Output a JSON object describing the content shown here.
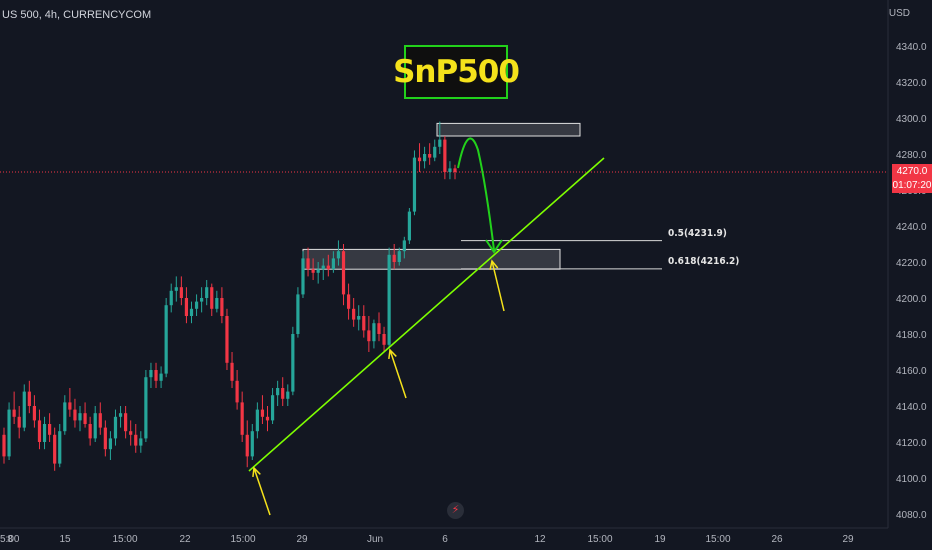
{
  "symbol": "US 500, 4h, CURRENCYCOM",
  "currency": "USD",
  "title_box": "SnP500",
  "current_price": "4270.0",
  "countdown": "01:07:20",
  "colors": {
    "background": "#131722",
    "up_candle": "#26a69a",
    "down_candle": "#f23645",
    "trendline": "#7fff00",
    "arrow_yellow": "#f5e21b",
    "arrow_green": "#22d11b",
    "price_line": "#f23645"
  },
  "fib_levels": [
    {
      "label": "0.5(4231.9)",
      "price": 4231.9
    },
    {
      "label": "0.618(4216.2)",
      "price": 4216.2
    }
  ],
  "chart_data": {
    "type": "candlestick",
    "title": "",
    "y_axis": {
      "min": 4076,
      "max": 4350,
      "ticks": [
        "4080.0",
        "4100.0",
        "4120.0",
        "4140.0",
        "4160.0",
        "4180.0",
        "4200.0",
        "4220.0",
        "4240.0",
        "4260.0",
        "4280.0",
        "4300.0",
        "4320.0",
        "4340.0"
      ]
    },
    "x_axis": {
      "ticks": [
        "5:00",
        "8",
        "15",
        "15:00",
        "22",
        "15:00",
        "29",
        "Jun",
        "6",
        "12",
        "15:00",
        "19",
        "15:00",
        "26",
        "29"
      ]
    },
    "candles": [
      [
        4124,
        4128,
        4108,
        4112
      ],
      [
        4112,
        4142,
        4110,
        4138
      ],
      [
        4138,
        4148,
        4130,
        4134
      ],
      [
        4134,
        4140,
        4122,
        4128
      ],
      [
        4128,
        4152,
        4126,
        4148
      ],
      [
        4148,
        4154,
        4136,
        4140
      ],
      [
        4140,
        4146,
        4128,
        4132
      ],
      [
        4132,
        4138,
        4116,
        4120
      ],
      [
        4120,
        4134,
        4116,
        4130
      ],
      [
        4130,
        4136,
        4120,
        4124
      ],
      [
        4124,
        4128,
        4104,
        4108
      ],
      [
        4108,
        4130,
        4106,
        4126
      ],
      [
        4126,
        4146,
        4124,
        4142
      ],
      [
        4142,
        4150,
        4134,
        4138
      ],
      [
        4138,
        4144,
        4128,
        4132
      ],
      [
        4132,
        4140,
        4126,
        4136
      ],
      [
        4136,
        4142,
        4128,
        4130
      ],
      [
        4130,
        4134,
        4118,
        4122
      ],
      [
        4122,
        4140,
        4120,
        4136
      ],
      [
        4136,
        4142,
        4124,
        4128
      ],
      [
        4128,
        4132,
        4112,
        4116
      ],
      [
        4116,
        4126,
        4110,
        4122
      ],
      [
        4122,
        4138,
        4118,
        4134
      ],
      [
        4134,
        4140,
        4128,
        4136
      ],
      [
        4136,
        4140,
        4122,
        4126
      ],
      [
        4126,
        4132,
        4118,
        4124
      ],
      [
        4124,
        4130,
        4114,
        4118
      ],
      [
        4118,
        4126,
        4114,
        4122
      ],
      [
        4122,
        4160,
        4120,
        4156
      ],
      [
        4156,
        4164,
        4150,
        4160
      ],
      [
        4160,
        4164,
        4150,
        4154
      ],
      [
        4154,
        4162,
        4150,
        4158
      ],
      [
        4158,
        4200,
        4156,
        4196
      ],
      [
        4196,
        4208,
        4192,
        4204
      ],
      [
        4204,
        4212,
        4198,
        4206
      ],
      [
        4206,
        4212,
        4196,
        4200
      ],
      [
        4200,
        4206,
        4186,
        4190
      ],
      [
        4190,
        4198,
        4186,
        4194
      ],
      [
        4194,
        4202,
        4190,
        4198
      ],
      [
        4198,
        4206,
        4192,
        4200
      ],
      [
        4200,
        4210,
        4196,
        4206
      ],
      [
        4206,
        4208,
        4190,
        4194
      ],
      [
        4194,
        4204,
        4192,
        4200
      ],
      [
        4200,
        4206,
        4186,
        4190
      ],
      [
        4190,
        4194,
        4160,
        4164
      ],
      [
        4164,
        4170,
        4150,
        4154
      ],
      [
        4154,
        4160,
        4138,
        4142
      ],
      [
        4142,
        4148,
        4120,
        4124
      ],
      [
        4124,
        4132,
        4106,
        4112
      ],
      [
        4112,
        4130,
        4110,
        4126
      ],
      [
        4126,
        4142,
        4122,
        4138
      ],
      [
        4138,
        4146,
        4130,
        4134
      ],
      [
        4134,
        4140,
        4126,
        4132
      ],
      [
        4132,
        4150,
        4130,
        4146
      ],
      [
        4146,
        4154,
        4140,
        4150
      ],
      [
        4150,
        4156,
        4140,
        4144
      ],
      [
        4144,
        4152,
        4140,
        4148
      ],
      [
        4148,
        4184,
        4146,
        4180
      ],
      [
        4180,
        4206,
        4178,
        4202
      ],
      [
        4202,
        4226,
        4200,
        4222
      ],
      [
        4222,
        4228,
        4212,
        4216
      ],
      [
        4216,
        4222,
        4210,
        4214
      ],
      [
        4214,
        4220,
        4208,
        4216
      ],
      [
        4216,
        4222,
        4210,
        4218
      ],
      [
        4218,
        4224,
        4212,
        4216
      ],
      [
        4216,
        4226,
        4214,
        4222
      ],
      [
        4222,
        4232,
        4218,
        4226
      ],
      [
        4226,
        4230,
        4196,
        4202
      ],
      [
        4202,
        4208,
        4188,
        4194
      ],
      [
        4194,
        4200,
        4184,
        4188
      ],
      [
        4188,
        4196,
        4182,
        4190
      ],
      [
        4190,
        4196,
        4178,
        4182
      ],
      [
        4182,
        4190,
        4170,
        4176
      ],
      [
        4176,
        4188,
        4172,
        4186
      ],
      [
        4186,
        4192,
        4176,
        4180
      ],
      [
        4180,
        4184,
        4170,
        4174
      ],
      [
        4174,
        4228,
        4172,
        4224
      ],
      [
        4224,
        4230,
        4216,
        4220
      ],
      [
        4220,
        4228,
        4218,
        4226
      ],
      [
        4226,
        4234,
        4222,
        4232
      ],
      [
        4232,
        4250,
        4230,
        4248
      ],
      [
        4248,
        4282,
        4246,
        4278
      ],
      [
        4278,
        4286,
        4270,
        4276
      ],
      [
        4276,
        4284,
        4272,
        4280
      ],
      [
        4280,
        4286,
        4274,
        4278
      ],
      [
        4278,
        4288,
        4276,
        4284
      ],
      [
        4284,
        4298,
        4280,
        4288
      ],
      [
        4288,
        4290,
        4266,
        4270
      ],
      [
        4270,
        4276,
        4266,
        4272
      ],
      [
        4272,
        4274,
        4266,
        4270
      ]
    ],
    "trendline": {
      "from": [
        4104,
        "candle 0"
      ],
      "to": [
        4280,
        "future"
      ]
    },
    "zones": [
      {
        "name": "resistance",
        "price_top": 4297,
        "price_bottom": 4290
      },
      {
        "name": "support",
        "price_top": 4227,
        "price_bottom": 4216
      }
    ],
    "current_price": 4270.0
  }
}
